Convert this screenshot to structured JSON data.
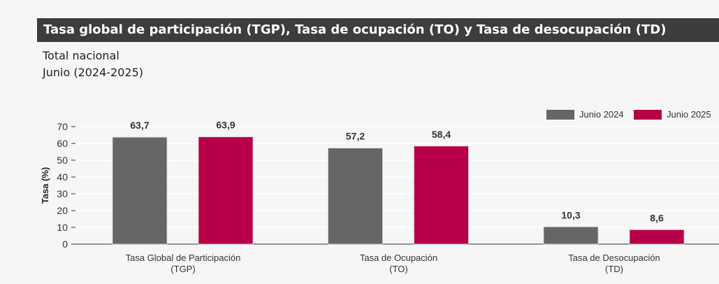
{
  "header": {
    "title": "Tasa global de participación (TGP), Tasa de ocupación (TO) y Tasa de desocupación (TD)",
    "subtitle1": "Total nacional",
    "subtitle2": "Junio (2024-2025)"
  },
  "chart_data": {
    "type": "bar",
    "categories": [
      [
        "Tasa Global de Participación",
        "(TGP)"
      ],
      [
        "Tasa de Ocupación",
        "(TO)"
      ],
      [
        "Tasa de Desocupación",
        "(TD)"
      ]
    ],
    "series": [
      {
        "name": "Junio 2024",
        "color": "#666666",
        "values": [
          63.7,
          57.2,
          10.3
        ],
        "labels": [
          "63,7",
          "57,2",
          "10,3"
        ]
      },
      {
        "name": "Junio 2025",
        "color": "#b8004a",
        "values": [
          63.9,
          58.4,
          8.6
        ],
        "labels": [
          "63,9",
          "58,4",
          "8,6"
        ]
      }
    ],
    "ylabel": "Tasa (%)",
    "ylim": [
      0,
      70
    ],
    "yticks": [
      0,
      10,
      20,
      30,
      40,
      50,
      60,
      70
    ],
    "grid": true,
    "legend": "top-right"
  }
}
